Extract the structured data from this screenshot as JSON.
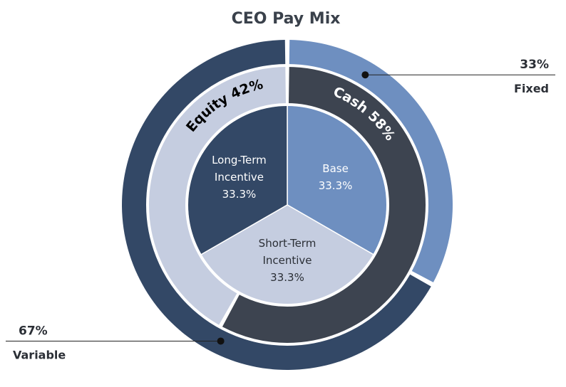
{
  "chart_data": {
    "type": "pie",
    "title": "CEO Pay Mix",
    "rings": [
      {
        "ring": "inner",
        "slices": [
          {
            "label_lines": [
              "Base"
            ],
            "value": 33.3,
            "display": "33.3%",
            "color": "#6e8fc0",
            "text_color": "#ffffff"
          },
          {
            "label_lines": [
              "Short-Term",
              "Incentive"
            ],
            "value": 33.3,
            "display": "33.3%",
            "color": "#c5cde0",
            "text_color": "#2b2f36"
          },
          {
            "label_lines": [
              "Long-Term",
              "Incentive"
            ],
            "value": 33.3,
            "display": "33.3%",
            "color": "#334866",
            "text_color": "#ffffff"
          }
        ]
      },
      {
        "ring": "middle",
        "slices": [
          {
            "label": "Cash 58%",
            "value": 58,
            "color": "#3d4450",
            "text_color": "#ffffff"
          },
          {
            "label": "Equity 42%",
            "value": 42,
            "color": "#c5cde0",
            "text_color": "#000000"
          }
        ]
      },
      {
        "ring": "outer",
        "slices": [
          {
            "label": "Fixed",
            "display": "33%",
            "value": 33,
            "color": "#6e8fc0"
          },
          {
            "label": "Variable",
            "display": "67%",
            "value": 67,
            "color": "#334866"
          }
        ]
      }
    ]
  }
}
